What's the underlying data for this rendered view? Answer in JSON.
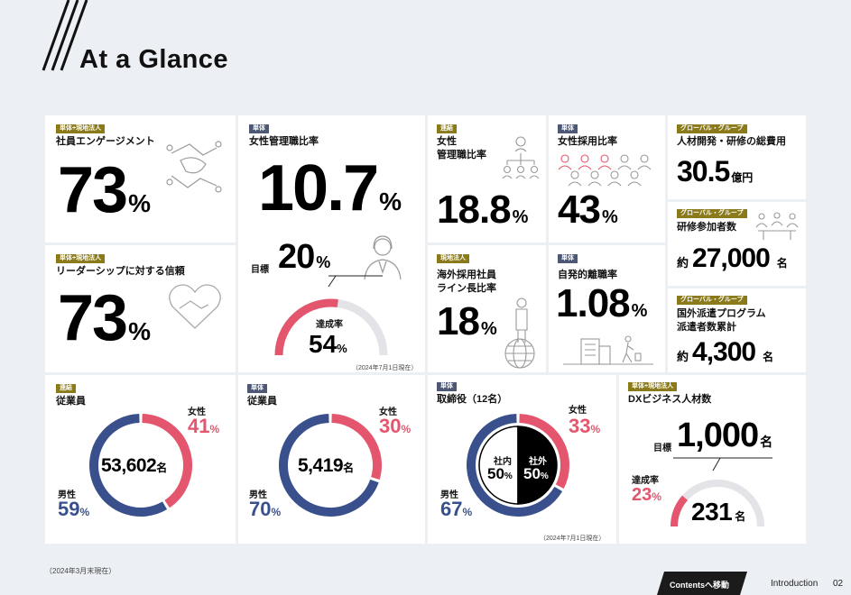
{
  "header": {
    "title": "At a Glance"
  },
  "cards": {
    "engagement": {
      "tag": "単体+現地法人",
      "label": "社員エンゲージメント",
      "value": "73",
      "unit": "%"
    },
    "leadership": {
      "tag": "単体+現地法人",
      "label": "リーダーシップに対する信頼",
      "value": "73",
      "unit": "%"
    },
    "female_mgr": {
      "tag": "単体",
      "label": "女性管理職比率",
      "value": "10.7",
      "unit": "%",
      "target_label": "目標",
      "target_value": "20",
      "target_unit": "%",
      "rate_label": "達成率",
      "rate_value": "54",
      "rate_unit": "%",
      "rate_fraction": 0.54,
      "note": "（2024年7月1日現在）"
    },
    "female_mgr_consol": {
      "tag": "連結",
      "label_line1": "女性",
      "label_line2": "管理職比率",
      "value": "18.8",
      "unit": "%"
    },
    "female_hire": {
      "tag": "単体",
      "label": "女性採用比率",
      "value": "43",
      "unit": "%"
    },
    "overseas_leader": {
      "tag": "現地法人",
      "label_line1": "海外採用社員",
      "label_line2": "ライン長比率",
      "value": "18",
      "unit": "%"
    },
    "turnover": {
      "tag": "単体",
      "label": "自発的離職率",
      "value": "1.08",
      "unit": "%"
    },
    "training_cost": {
      "tag": "グローバル・グループ",
      "label": "人材開発・研修の総費用",
      "value": "30.5",
      "unit": "億円"
    },
    "training_people": {
      "tag": "グローバル・グループ",
      "label": "研修参加者数",
      "prefix": "約",
      "value": "27,000",
      "unit": "名"
    },
    "dispatch": {
      "tag": "グローバル・グループ",
      "label_line1": "国外派遣プログラム",
      "label_line2": "派遣者数累計",
      "prefix": "約",
      "value": "4,300",
      "unit": "名"
    },
    "emp_consol": {
      "tag": "連結",
      "label": "従業員",
      "total": "53,602",
      "total_unit": "名",
      "female_label": "女性",
      "female_value": "41",
      "male_label": "男性",
      "male_value": "59",
      "unit": "%",
      "female_fraction": 0.41
    },
    "emp_single": {
      "tag": "単体",
      "label": "従業員",
      "total": "5,419",
      "total_unit": "名",
      "female_label": "女性",
      "female_value": "30",
      "male_label": "男性",
      "male_value": "70",
      "unit": "%",
      "female_fraction": 0.3
    },
    "directors": {
      "tag": "単体",
      "label": "取締役（12名）",
      "female_label": "女性",
      "female_value": "33",
      "male_label": "男性",
      "male_value": "67",
      "unit": "%",
      "female_fraction": 0.33,
      "inside_label": "社内",
      "inside_value": "50",
      "outside_label": "社外",
      "outside_value": "50",
      "note": "（2024年7月1日現在）"
    },
    "dx": {
      "tag": "単体+現地法人",
      "label": "DXビジネス人材数",
      "target_label": "目標",
      "target_value": "1,000",
      "target_unit": "名",
      "rate_label": "達成率",
      "rate_value": "23",
      "rate_unit": "%",
      "rate_fraction": 0.23,
      "current_value": "231",
      "current_unit": "名"
    }
  },
  "footer": {
    "note": "（2024年3月末現在）",
    "contents_button": "Contentsへ移動",
    "section": "Introduction",
    "page": "02"
  },
  "colors": {
    "pink": "#e4566d",
    "navy": "#39508d",
    "gray": "#e3e3e8",
    "gold": "#8a7a1a",
    "tag_navy": "#4d5875"
  }
}
